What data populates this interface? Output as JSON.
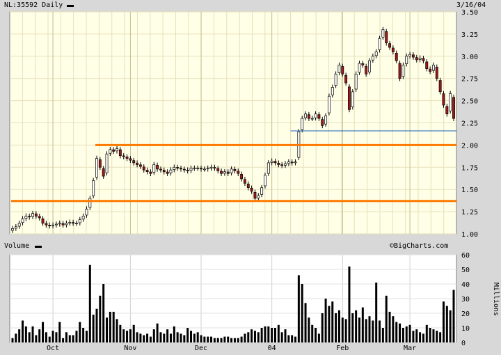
{
  "header": {
    "symbol_label": "NL:35592 Daily",
    "date": "3/16/04",
    "volume_label": "Volume",
    "watermark": "©BigCharts.com",
    "volume_units": "Millions"
  },
  "colors": {
    "plot_bg": "#ffffe8",
    "up_candle": "#ffffff",
    "down_candle": "#a01818",
    "support_lines": "#ff7a00",
    "trend_line": "#1a5fb4",
    "volume_bar": "#000000"
  },
  "chart_data": [
    {
      "type": "candlestick",
      "title": "NL:35592 Daily",
      "ylim": [
        1.0,
        3.5
      ],
      "y_ticks": [
        "1.00",
        "1.25",
        "1.50",
        "1.75",
        "2.00",
        "2.25",
        "2.50",
        "2.75",
        "3.00",
        "3.25",
        "3.50"
      ],
      "x_labels": [
        {
          "label": "Oct",
          "index": 12
        },
        {
          "label": "Nov",
          "index": 35
        },
        {
          "label": "Dec",
          "index": 56
        },
        {
          "label": "04",
          "index": 77
        },
        {
          "label": "Feb",
          "index": 98
        },
        {
          "label": "Mar",
          "index": 118
        }
      ],
      "grid": true,
      "horizontal_lines": [
        {
          "name": "resistance-2.00",
          "value": 2.0,
          "from_index": 25
        },
        {
          "name": "support-1.37",
          "value": 1.37,
          "from_index": 0
        },
        {
          "name": "trend-2.16",
          "value": 2.16,
          "from_index": 83
        }
      ],
      "closes": [
        1.06,
        1.08,
        1.12,
        1.17,
        1.2,
        1.19,
        1.23,
        1.2,
        1.18,
        1.12,
        1.1,
        1.09,
        1.1,
        1.11,
        1.12,
        1.1,
        1.12,
        1.13,
        1.12,
        1.12,
        1.16,
        1.2,
        1.28,
        1.4,
        1.6,
        1.85,
        1.75,
        1.65,
        1.9,
        1.95,
        1.93,
        1.96,
        1.88,
        1.87,
        1.85,
        1.83,
        1.8,
        1.78,
        1.76,
        1.72,
        1.7,
        1.68,
        1.78,
        1.73,
        1.72,
        1.7,
        1.68,
        1.72,
        1.75,
        1.74,
        1.73,
        1.72,
        1.71,
        1.74,
        1.74,
        1.74,
        1.73,
        1.73,
        1.74,
        1.75,
        1.74,
        1.71,
        1.68,
        1.7,
        1.68,
        1.73,
        1.71,
        1.68,
        1.62,
        1.57,
        1.52,
        1.48,
        1.4,
        1.43,
        1.52,
        1.66,
        1.8,
        1.82,
        1.8,
        1.78,
        1.77,
        1.79,
        1.81,
        1.8,
        1.81,
        2.15,
        2.3,
        2.35,
        2.3,
        2.3,
        2.35,
        2.3,
        2.22,
        2.33,
        2.55,
        2.65,
        2.8,
        2.9,
        2.8,
        2.7,
        2.4,
        2.6,
        2.8,
        2.92,
        2.9,
        2.8,
        2.95,
        3.0,
        3.05,
        3.2,
        3.3,
        3.15,
        3.1,
        3.05,
        2.95,
        2.75,
        2.9,
        3.0,
        3.02,
        2.99,
        2.96,
        2.98,
        2.95,
        2.86,
        2.83,
        2.9,
        2.75,
        2.6,
        2.45,
        2.35,
        2.58,
        2.3
      ],
      "volume_ylim": [
        0,
        60
      ],
      "volume_ticks": [
        "0",
        "10",
        "20",
        "30",
        "40",
        "50",
        "60"
      ],
      "volume_millions": [
        3,
        6,
        9,
        15,
        11,
        7,
        11,
        5,
        9,
        14,
        7,
        4,
        8,
        7,
        14,
        3,
        7,
        5,
        5,
        8,
        14,
        10,
        8,
        53,
        19,
        23,
        32,
        40,
        17,
        21,
        21,
        16,
        12,
        9,
        8,
        9,
        12,
        7,
        6,
        5,
        6,
        4,
        9,
        13,
        7,
        6,
        9,
        6,
        11,
        7,
        6,
        5,
        10,
        8,
        6,
        7,
        5,
        4,
        4,
        4,
        3,
        3,
        3,
        4,
        4,
        3,
        3,
        3,
        4,
        6,
        7,
        9,
        8,
        7,
        10,
        11,
        11,
        10,
        10,
        12,
        7,
        9,
        5,
        5,
        4,
        46,
        40,
        27,
        17,
        12,
        10,
        6,
        20,
        30,
        25,
        28,
        20,
        22,
        17,
        16,
        52,
        20,
        22,
        17,
        24,
        16,
        18,
        15,
        41,
        15,
        10,
        32,
        21,
        18,
        14,
        13,
        10,
        11,
        12,
        8,
        9,
        7,
        6,
        12,
        10,
        9,
        8,
        7,
        28,
        25,
        22,
        36
      ]
    }
  ]
}
